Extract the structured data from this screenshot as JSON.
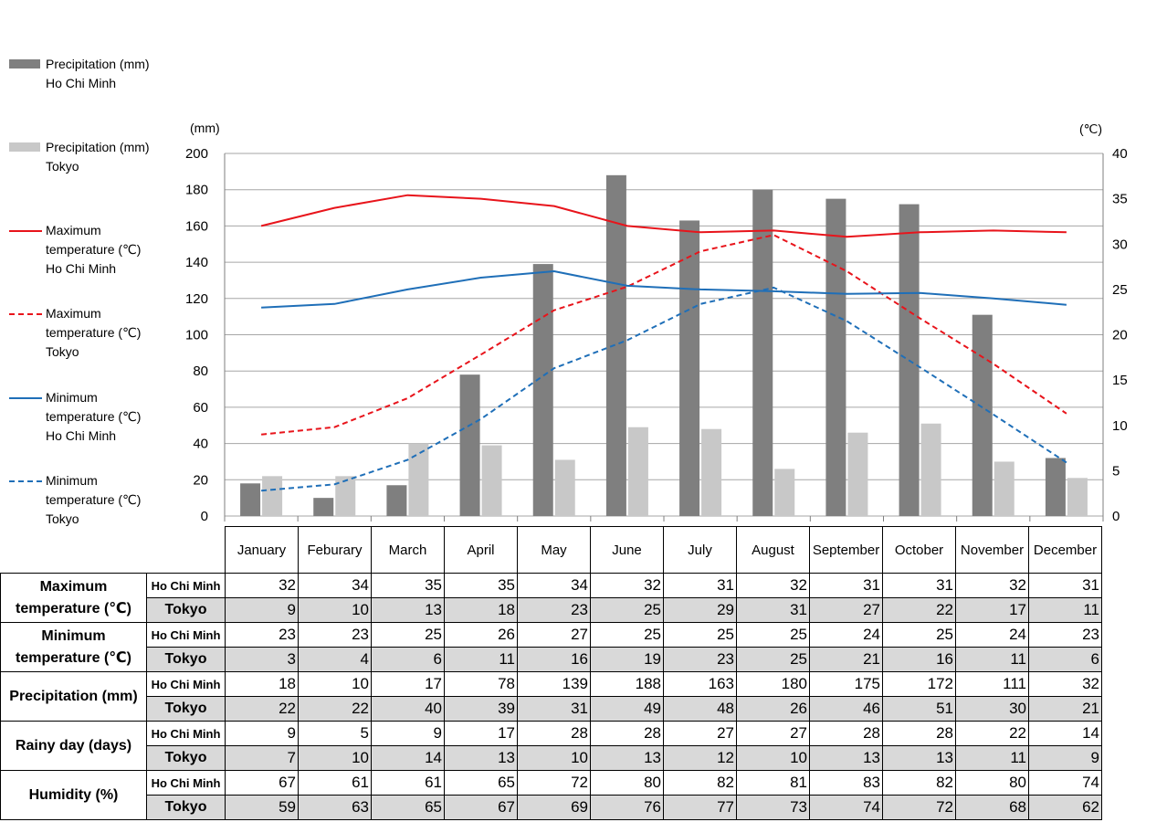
{
  "chart_data": {
    "type": "bar+line",
    "categories": [
      "January",
      "February",
      "March",
      "April",
      "May",
      "June",
      "July",
      "August",
      "September",
      "October",
      "November",
      "December"
    ],
    "left_axis": {
      "unit_label": "(mm)",
      "range": [
        0,
        200
      ],
      "ticks": [
        0,
        20,
        40,
        60,
        80,
        100,
        120,
        140,
        160,
        180,
        200
      ]
    },
    "right_axis": {
      "unit_label": "(℃)",
      "range": [
        0,
        40
      ],
      "ticks": [
        0,
        5,
        10,
        15,
        20,
        25,
        30,
        35,
        40
      ]
    },
    "grid": true,
    "legend_position": "left",
    "series": [
      {
        "name_line1": "Precipitation (mm)",
        "name_line2": "Ho Chi Minh",
        "type": "bar",
        "axis": "left",
        "color": "#7f7f7f",
        "values": [
          18,
          10,
          17,
          78,
          139,
          188,
          163,
          180,
          175,
          172,
          111,
          32
        ]
      },
      {
        "name_line1": "Precipitation (mm)",
        "name_line2": "Tokyo",
        "type": "bar",
        "axis": "left",
        "color": "#c8c8c8",
        "values": [
          22,
          22,
          40,
          39,
          31,
          49,
          48,
          26,
          46,
          51,
          30,
          21
        ]
      },
      {
        "name_line1": "Maximum",
        "name_line2": "temperature (℃)",
        "name_line3": "Ho Chi Minh",
        "type": "line",
        "axis": "right",
        "color": "#e8141b",
        "dash": "solid",
        "values": [
          32,
          34,
          35.4,
          35,
          34.2,
          32,
          31.3,
          31.5,
          30.8,
          31.3,
          31.5,
          31.3
        ]
      },
      {
        "name_line1": "Maximum",
        "name_line2": "temperature (℃)",
        "name_line3": "Tokyo",
        "type": "line",
        "axis": "right",
        "color": "#e8141b",
        "dash": "dashed",
        "values": [
          9,
          9.8,
          13,
          17.8,
          22.7,
          25.3,
          29.2,
          31,
          27,
          21.8,
          16.8,
          11.3
        ]
      },
      {
        "name_line1": "Minimum",
        "name_line2": "temperature (℃)",
        "name_line3": "Ho Chi Minh",
        "type": "line",
        "axis": "right",
        "color": "#1f6fb8",
        "dash": "solid",
        "values": [
          23,
          23.4,
          25,
          26.3,
          27,
          25.4,
          25,
          24.8,
          24.5,
          24.6,
          24,
          23.3
        ]
      },
      {
        "name_line1": "Minimum",
        "name_line2": "temperature (℃)",
        "name_line3": "Tokyo",
        "type": "line",
        "axis": "right",
        "color": "#1f6fb8",
        "dash": "dashed",
        "values": [
          2.8,
          3.5,
          6.2,
          10.7,
          16.3,
          19.4,
          23.4,
          25.2,
          21.5,
          16.4,
          11.2,
          5.9
        ]
      }
    ]
  },
  "table": {
    "months": [
      "January",
      "Feburary",
      "March",
      "April",
      "May",
      "June",
      "July",
      "August",
      "September",
      "October",
      "November",
      "December"
    ],
    "groups": [
      {
        "label": "Maximum temperature (℃)",
        "rows": [
          {
            "city": "Ho Chi Minh",
            "values": [
              32,
              34,
              35,
              35,
              34,
              32,
              31,
              32,
              31,
              31,
              32,
              31
            ]
          },
          {
            "city": "Tokyo",
            "values": [
              9,
              10,
              13,
              18,
              23,
              25,
              29,
              31,
              27,
              22,
              17,
              11
            ]
          }
        ]
      },
      {
        "label": "Minimum temperature (℃)",
        "rows": [
          {
            "city": "Ho Chi Minh",
            "values": [
              23,
              23,
              25,
              26,
              27,
              25,
              25,
              25,
              24,
              25,
              24,
              23
            ]
          },
          {
            "city": "Tokyo",
            "values": [
              3,
              4,
              6,
              11,
              16,
              19,
              23,
              25,
              21,
              16,
              11,
              6
            ]
          }
        ]
      },
      {
        "label": "Precipitation (mm)",
        "rows": [
          {
            "city": "Ho Chi Minh",
            "values": [
              18,
              10,
              17,
              78,
              139,
              188,
              163,
              180,
              175,
              172,
              111,
              32
            ]
          },
          {
            "city": "Tokyo",
            "values": [
              22,
              22,
              40,
              39,
              31,
              49,
              48,
              26,
              46,
              51,
              30,
              21
            ]
          }
        ]
      },
      {
        "label": "Rainy day (days)",
        "rows": [
          {
            "city": "Ho Chi Minh",
            "values": [
              9,
              5,
              9,
              17,
              28,
              28,
              27,
              27,
              28,
              28,
              22,
              14
            ]
          },
          {
            "city": "Tokyo",
            "values": [
              7,
              10,
              14,
              13,
              10,
              13,
              12,
              10,
              13,
              13,
              11,
              9
            ]
          }
        ]
      },
      {
        "label": "Humidity (%)",
        "rows": [
          {
            "city": "Ho Chi Minh",
            "values": [
              67,
              61,
              61,
              65,
              72,
              80,
              82,
              81,
              83,
              82,
              80,
              74
            ]
          },
          {
            "city": "Tokyo",
            "values": [
              59,
              63,
              65,
              67,
              69,
              76,
              77,
              73,
              74,
              72,
              68,
              62
            ]
          }
        ]
      }
    ]
  }
}
